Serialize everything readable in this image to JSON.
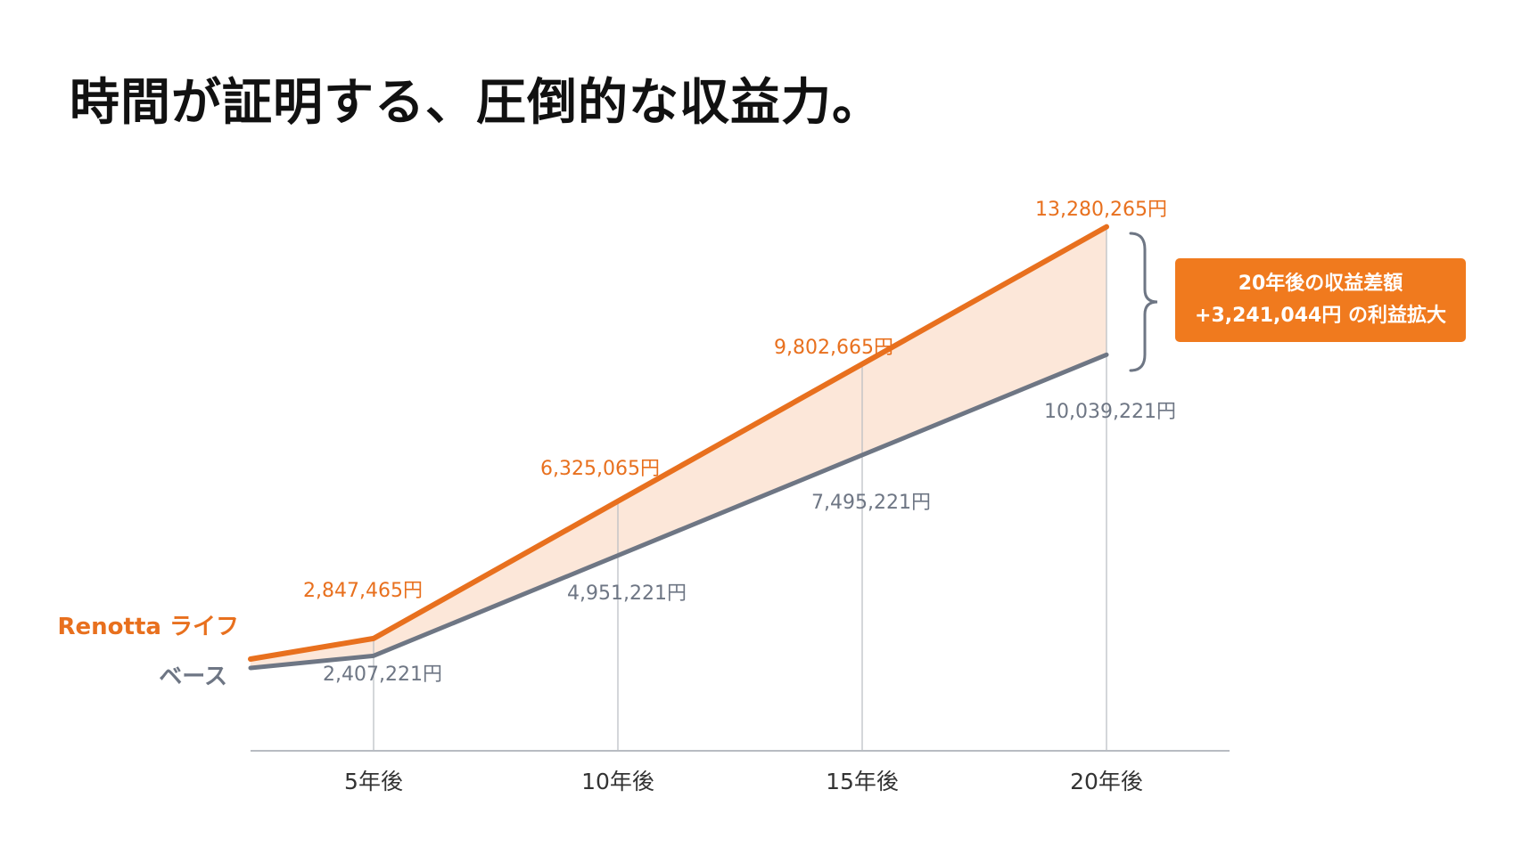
{
  "title": "時間が証明する、圧倒的な収益力。",
  "colors": {
    "orange": "#E8701E",
    "orange_fill": "#FBE3D2",
    "gray": "#6E7684",
    "axis": "#B8BCC2",
    "callout_bg": "#F07A1E"
  },
  "callout": {
    "line1": "20年後の収益差額",
    "line2": "+3,241,044円 の利益拡大"
  },
  "chart_data": {
    "type": "line",
    "categories": [
      "5年後",
      "10年後",
      "15年後",
      "20年後"
    ],
    "series": [
      {
        "name": "Renotta ライフ",
        "values": [
          2847465,
          6325065,
          9802665,
          13280265
        ],
        "labels": [
          "2,847,465円",
          "6,325,065円",
          "9,802,665円",
          "13,280,265円"
        ]
      },
      {
        "name": "ベース",
        "values": [
          2407221,
          4951221,
          7495221,
          10039221
        ],
        "labels": [
          "2,407,221円",
          "4,951,221円",
          "7,495,221円",
          "10,039,221円"
        ]
      }
    ],
    "area_between_series": true,
    "grid": false
  }
}
